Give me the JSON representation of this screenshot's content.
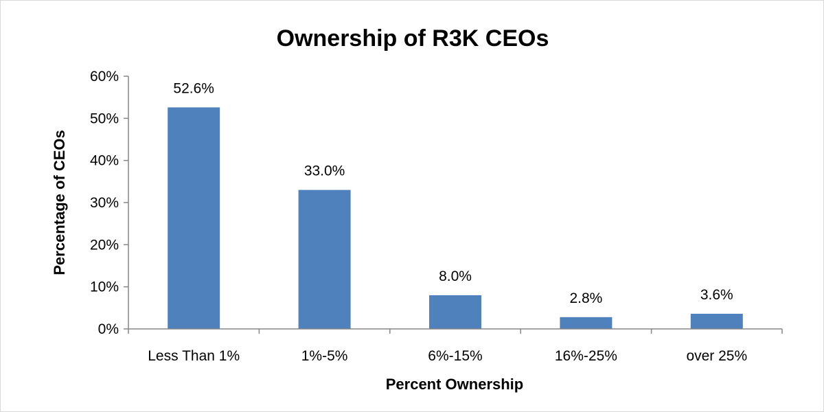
{
  "chart_data": {
    "type": "bar",
    "title": "Ownership of R3K CEOs",
    "xlabel": "Percent Ownership",
    "ylabel": "Percentage of CEOs",
    "categories": [
      "Less Than 1%",
      "1%-5%",
      "6%-15%",
      "16%-25%",
      "over 25%"
    ],
    "values": [
      52.6,
      33.0,
      8.0,
      2.8,
      3.6
    ],
    "data_labels": [
      "52.6%",
      "33.0%",
      "8.0%",
      "2.8%",
      "3.6%"
    ],
    "ylim": [
      0,
      60
    ],
    "yticks": [
      0,
      10,
      20,
      30,
      40,
      50,
      60
    ],
    "ytick_labels": [
      "0%",
      "10%",
      "20%",
      "30%",
      "40%",
      "50%",
      "60%"
    ],
    "bar_color": "#4f81bd",
    "grid": false,
    "legend": "none"
  }
}
